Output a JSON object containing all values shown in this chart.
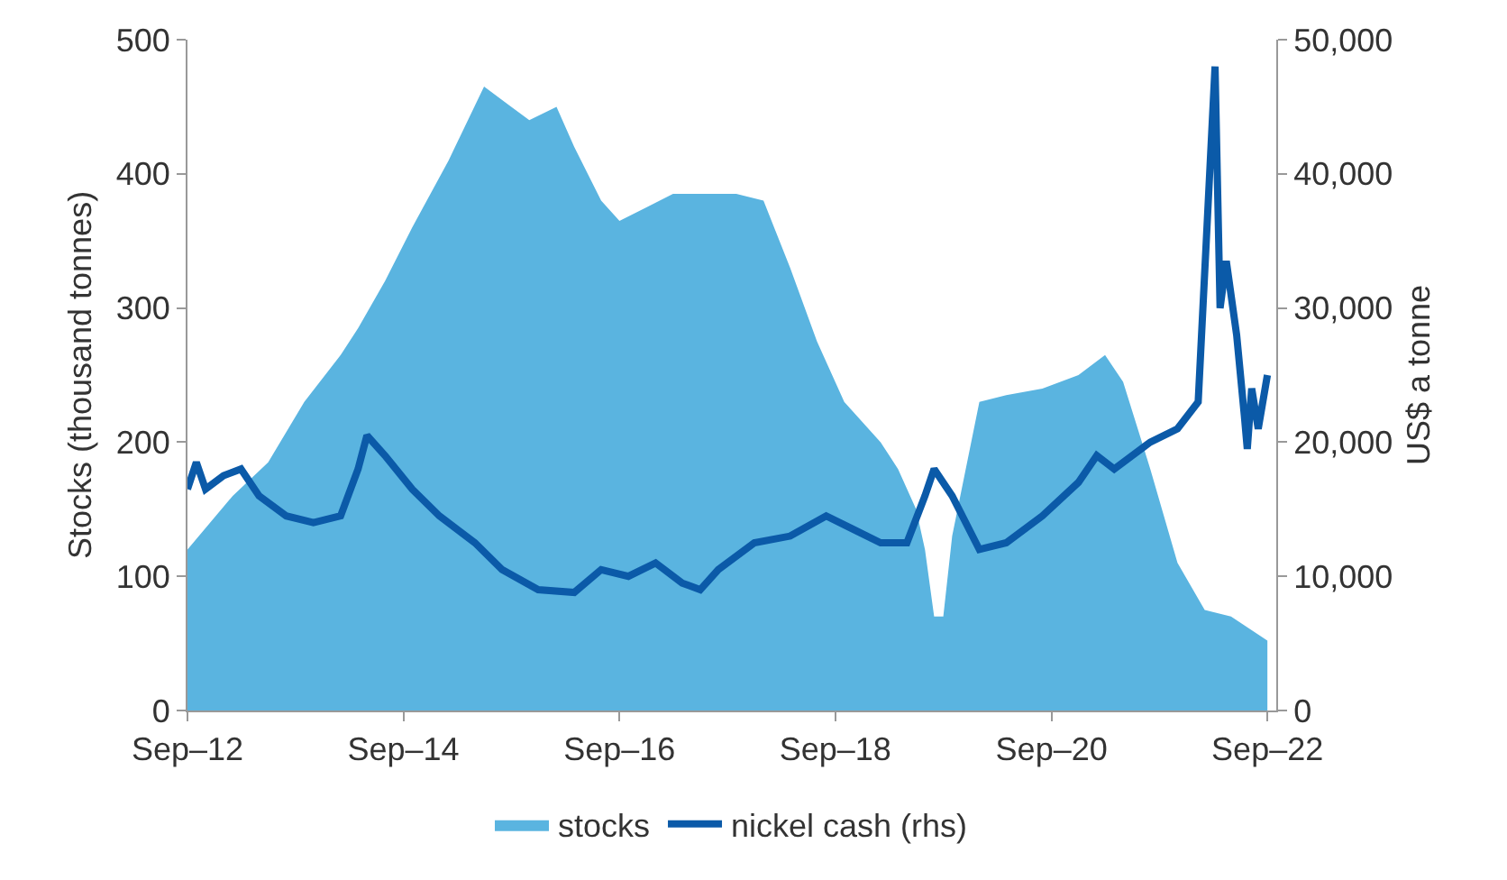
{
  "chart_data": {
    "type": "area",
    "ylabel": "Stocks (thousand tonnes)",
    "y2label": "US$ a tonne",
    "legend": "bottom",
    "marker": "none",
    "xlim": [
      "2012-09-01",
      "2022-10-01"
    ],
    "xticks": [
      {
        "value": "2012-09-01",
        "label": "Sep–12"
      },
      {
        "value": "2014-09-01",
        "label": "Sep–14"
      },
      {
        "value": "2016-09-01",
        "label": "Sep–16"
      },
      {
        "value": "2018-09-01",
        "label": "Sep–18"
      },
      {
        "value": "2020-09-01",
        "label": "Sep–20"
      },
      {
        "value": "2022-09-01",
        "label": "Sep–22"
      }
    ],
    "ylim": [
      0,
      500
    ],
    "yticks": [
      0,
      100,
      200,
      300,
      400,
      500
    ],
    "y2lim": [
      0,
      50000
    ],
    "y2ticks": [
      {
        "value": 0,
        "label": "0"
      },
      {
        "value": 10000,
        "label": "10,000"
      },
      {
        "value": 20000,
        "label": "20,000"
      },
      {
        "value": 30000,
        "label": "30,000"
      },
      {
        "value": 40000,
        "label": "40,000"
      },
      {
        "value": 50000,
        "label": "50,000"
      }
    ],
    "series": [
      {
        "name": "stocks",
        "color": "#5ab4e0",
        "x": [
          "2012-09",
          "2013-02",
          "2013-06",
          "2013-10",
          "2014-02",
          "2014-04",
          "2014-07",
          "2014-10",
          "2015-02",
          "2015-06",
          "2015-09",
          "2015-11",
          "2016-02",
          "2016-04",
          "2016-07",
          "2016-09",
          "2016-12",
          "2017-03",
          "2017-06",
          "2017-10",
          "2018-01",
          "2018-04",
          "2018-07",
          "2018-10",
          "2019-02",
          "2019-04",
          "2019-06",
          "2019-07",
          "2019-08",
          "2019-09",
          "2019-10",
          "2020-01",
          "2020-04",
          "2020-08",
          "2020-12",
          "2021-03",
          "2021-05",
          "2021-08",
          "2021-11",
          "2022-02",
          "2022-05",
          "2022-09"
        ],
        "values": [
          120,
          160,
          185,
          230,
          265,
          285,
          320,
          360,
          410,
          465,
          450,
          440,
          450,
          420,
          380,
          365,
          375,
          385,
          385,
          385,
          380,
          330,
          275,
          230,
          200,
          180,
          150,
          120,
          70,
          70,
          130,
          230,
          235,
          240,
          250,
          265,
          245,
          180,
          110,
          75,
          70,
          52
        ]
      },
      {
        "name": "nickel cash (rhs)",
        "type": "line",
        "axis": "y2",
        "color": "#0b5aa8",
        "x": [
          "2012-09",
          "2012-10",
          "2012-11",
          "2013-01",
          "2013-03",
          "2013-05",
          "2013-08",
          "2013-11",
          "2014-02",
          "2014-04",
          "2014-05",
          "2014-07",
          "2014-10",
          "2015-01",
          "2015-05",
          "2015-08",
          "2015-12",
          "2016-04",
          "2016-07",
          "2016-10",
          "2017-01",
          "2017-04",
          "2017-06",
          "2017-08",
          "2017-12",
          "2018-04",
          "2018-08",
          "2018-11",
          "2019-02",
          "2019-05",
          "2019-07",
          "2019-08",
          "2019-10",
          "2020-01",
          "2020-04",
          "2020-08",
          "2020-12",
          "2021-02",
          "2021-04",
          "2021-08",
          "2021-11",
          "2022-01-10",
          "2022-03-08",
          "2022-03-25",
          "2022-04-15",
          "2022-05-20",
          "2022-06-15",
          "2022-06-25",
          "2022-07-10",
          "2022-08-01",
          "2022-09-01"
        ],
        "values": [
          16500,
          18500,
          16500,
          17500,
          18000,
          16000,
          14500,
          14000,
          14500,
          18000,
          20500,
          19000,
          16500,
          14500,
          12500,
          10500,
          9000,
          8800,
          10500,
          10000,
          11000,
          9500,
          9000,
          10500,
          12500,
          13000,
          14500,
          13500,
          12500,
          12500,
          16000,
          18000,
          16000,
          12000,
          12500,
          14500,
          17000,
          19000,
          18000,
          20000,
          21000,
          23000,
          48000,
          30000,
          33500,
          28000,
          22000,
          19500,
          24000,
          21000,
          25000
        ]
      }
    ]
  }
}
